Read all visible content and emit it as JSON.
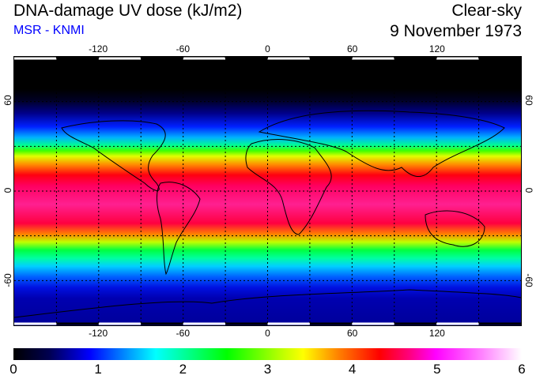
{
  "header": {
    "title": "DNA-damage UV dose (kJ/m2)",
    "source": "MSR - KNMI",
    "condition": "Clear-sky",
    "date": "9 November 1973"
  },
  "map": {
    "lon_ticks": [
      "-120",
      "-60",
      "0",
      "60",
      "120"
    ],
    "lat_ticks": [
      "60",
      "0",
      "-60"
    ],
    "lon_range": [
      -180,
      180
    ],
    "lat_range": [
      -90,
      90
    ],
    "grid_step_deg": 30
  },
  "colorbar": {
    "labels": [
      "0",
      "1",
      "2",
      "3",
      "4",
      "5",
      "6"
    ],
    "range": [
      0,
      6
    ],
    "unit": "kJ/m2"
  }
}
